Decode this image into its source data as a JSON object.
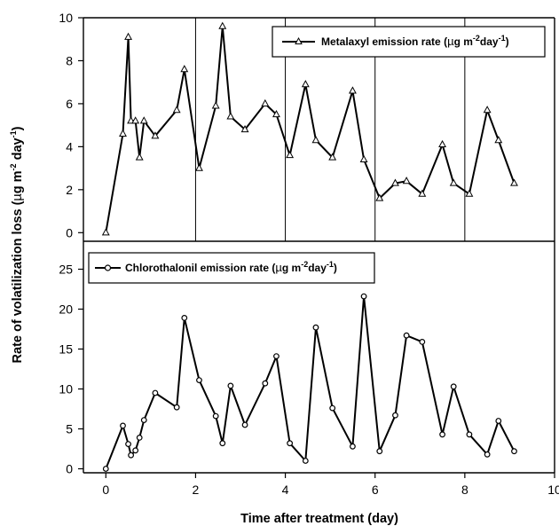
{
  "chart_data": [
    {
      "type": "line",
      "panel": "top",
      "marker": "triangle",
      "legend_label": "Metalaxyl emission rate (µg m⁻²day⁻¹)",
      "legend": {
        "prefix": "Metalaxyl emission rate (",
        "unit_mu": "µ",
        "unit_g": "g m",
        "sup1": "-2",
        "mid": "day",
        "sup2": "-1",
        "suffix": ")"
      },
      "legend_position": "top-right",
      "xlim": [
        -0.5,
        10
      ],
      "ylim": [
        -0.4,
        10
      ],
      "yticks": [
        0,
        2,
        4,
        6,
        8,
        10
      ],
      "x": [
        0,
        0.38,
        0.5,
        0.56,
        0.66,
        0.75,
        0.85,
        1.1,
        1.58,
        1.75,
        2.08,
        2.45,
        2.6,
        2.78,
        3.1,
        3.55,
        3.8,
        4.1,
        4.45,
        4.68,
        5.05,
        5.5,
        5.75,
        6.1,
        6.45,
        6.7,
        7.05,
        7.5,
        7.75,
        8.1,
        8.5,
        8.75,
        9.1
      ],
      "y": [
        0,
        4.6,
        9.1,
        5.2,
        5.2,
        3.5,
        5.2,
        4.5,
        5.7,
        7.6,
        3.0,
        5.9,
        9.6,
        5.4,
        4.8,
        6.0,
        5.5,
        3.6,
        6.9,
        4.3,
        3.5,
        6.6,
        3.4,
        1.6,
        2.3,
        2.4,
        1.8,
        4.1,
        2.3,
        1.8,
        5.7,
        4.3,
        2.3
      ]
    },
    {
      "type": "line",
      "panel": "bottom",
      "marker": "circle",
      "legend_label": "Chlorothalonil emission rate (µg m⁻²day⁻¹)",
      "legend": {
        "prefix": "Chlorothalonil emission rate (",
        "unit_mu": "µ",
        "unit_g": "g m",
        "sup1": "-2",
        "mid": "day",
        "sup2": "-1",
        "suffix": ")"
      },
      "legend_position": "top-left",
      "xlim": [
        -0.5,
        10
      ],
      "ylim": [
        -0.5,
        28.5
      ],
      "yticks": [
        0,
        5,
        10,
        15,
        20,
        25
      ],
      "x": [
        0,
        0.38,
        0.5,
        0.56,
        0.66,
        0.75,
        0.85,
        1.1,
        1.58,
        1.75,
        2.08,
        2.45,
        2.6,
        2.78,
        3.1,
        3.55,
        3.8,
        4.1,
        4.45,
        4.68,
        5.05,
        5.5,
        5.75,
        6.1,
        6.45,
        6.7,
        7.05,
        7.5,
        7.75,
        8.1,
        8.5,
        8.75,
        9.1
      ],
      "y": [
        0,
        5.4,
        3.1,
        1.7,
        2.3,
        3.9,
        6.1,
        9.5,
        7.7,
        18.9,
        11.1,
        6.6,
        3.2,
        10.4,
        5.5,
        10.7,
        14.1,
        3.2,
        1.0,
        17.7,
        7.6,
        2.8,
        21.6,
        2.2,
        6.7,
        16.7,
        15.9,
        4.3,
        10.3,
        4.3,
        1.8,
        6.0,
        2.2
      ]
    }
  ],
  "shared_x_axis": {
    "label": "Time after treatment (day)",
    "ticks": [
      0,
      2,
      4,
      6,
      8,
      10
    ]
  },
  "shared_y_axis": {
    "label_main": "Rate of volatilization loss (",
    "label_mu": "µ",
    "label_unit": "g m",
    "label_sup1": "-2",
    "label_day": " day",
    "label_sup2": "-1",
    "label_end": ")"
  }
}
